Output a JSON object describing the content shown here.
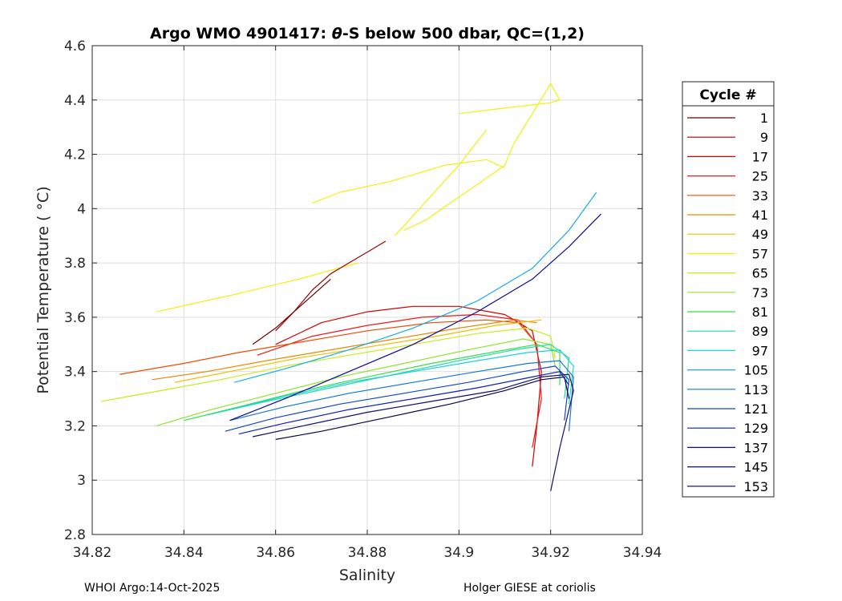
{
  "chart_data": {
    "type": "line",
    "title_parts": [
      "Argo WMO 4901417: ",
      "θ",
      "-S below 500 dbar,  QC=(1,2)"
    ],
    "xlabel": "Salinity",
    "ylabel": "Potential Temperature ( °C)",
    "xlim": [
      34.82,
      34.94
    ],
    "ylim": [
      2.8,
      4.6
    ],
    "xticks": [
      34.82,
      34.84,
      34.86,
      34.88,
      34.9,
      34.92,
      34.94
    ],
    "xtick_labels": [
      "34.82",
      "34.84",
      "34.86",
      "34.88",
      "34.9",
      "34.92",
      "34.94"
    ],
    "yticks": [
      2.8,
      3.0,
      3.2,
      3.4,
      3.6,
      3.8,
      4.0,
      4.2,
      4.4,
      4.6
    ],
    "ytick_labels": [
      "2.8",
      "3",
      "3.2",
      "3.4",
      "3.6",
      "3.8",
      "4",
      "4.2",
      "4.4",
      "4.6"
    ],
    "grid": true,
    "legend": {
      "title": "Cycle #",
      "placement": "outside-right",
      "entries": [
        {
          "label": "1",
          "color": "#6b0000"
        },
        {
          "label": "9",
          "color": "#a00000"
        },
        {
          "label": "17",
          "color": "#d40000"
        },
        {
          "label": "25",
          "color": "#f01818"
        },
        {
          "label": "33",
          "color": "#f24a00"
        },
        {
          "label": "41",
          "color": "#e88a00"
        },
        {
          "label": "49",
          "color": "#f2bb00"
        },
        {
          "label": "57",
          "color": "#f5f00a"
        },
        {
          "label": "65",
          "color": "#c4ee1a"
        },
        {
          "label": "73",
          "color": "#8be62a"
        },
        {
          "label": "81",
          "color": "#35e04a"
        },
        {
          "label": "89",
          "color": "#1ed8a6"
        },
        {
          "label": "97",
          "color": "#1ad2dc"
        },
        {
          "label": "105",
          "color": "#15aee6"
        },
        {
          "label": "113",
          "color": "#1478d8"
        },
        {
          "label": "121",
          "color": "#1046d2"
        },
        {
          "label": "129",
          "color": "#0c1ec0"
        },
        {
          "label": "137",
          "color": "#0a0a9e"
        },
        {
          "label": "145",
          "color": "#10106e"
        },
        {
          "label": "153",
          "color": "#050550"
        }
      ]
    },
    "series": [
      {
        "name": "57",
        "color": "#f5f00a",
        "x": [
          34.868,
          34.874,
          34.885,
          34.897,
          34.906,
          34.91
        ],
        "y": [
          4.02,
          4.06,
          4.1,
          4.16,
          4.18,
          4.15
        ]
      },
      {
        "name": "57",
        "color": "#f5f00a",
        "x": [
          34.9,
          34.91,
          34.92,
          34.922,
          34.92,
          34.916,
          34.912,
          34.91,
          34.905,
          34.898,
          34.893,
          34.888
        ],
        "y": [
          4.35,
          4.37,
          4.39,
          4.4,
          4.46,
          4.35,
          4.24,
          4.16,
          4.1,
          4.02,
          3.96,
          3.92
        ]
      },
      {
        "name": "57",
        "color": "#f5f00a",
        "x": [
          34.886,
          34.893,
          34.9,
          34.906
        ],
        "y": [
          3.9,
          4.03,
          4.16,
          4.29
        ]
      },
      {
        "name": "57",
        "color": "#f5f00a",
        "x": [
          34.834,
          34.85,
          34.865,
          34.878
        ],
        "y": [
          3.62,
          3.68,
          3.74,
          3.8
        ]
      },
      {
        "name": "9",
        "color": "#a00000",
        "x": [
          34.86,
          34.864,
          34.868,
          34.872,
          34.876,
          34.88,
          34.884
        ],
        "y": [
          3.55,
          3.62,
          3.7,
          3.76,
          3.8,
          3.84,
          3.88
        ]
      },
      {
        "name": "1",
        "color": "#6b0000",
        "x": [
          34.855,
          34.86,
          34.864,
          34.868,
          34.872
        ],
        "y": [
          3.5,
          3.56,
          3.62,
          3.68,
          3.74
        ]
      },
      {
        "name": "17",
        "color": "#d40000",
        "x": [
          34.86,
          34.87,
          34.88,
          34.89,
          34.9,
          34.91,
          34.916,
          34.918,
          34.917,
          34.916
        ],
        "y": [
          3.5,
          3.58,
          3.62,
          3.64,
          3.64,
          3.61,
          3.55,
          3.4,
          3.2,
          3.05
        ]
      },
      {
        "name": "25",
        "color": "#f01818",
        "x": [
          34.856,
          34.868,
          34.88,
          34.892,
          34.904,
          34.913,
          34.917,
          34.918,
          34.916
        ],
        "y": [
          3.46,
          3.53,
          3.57,
          3.6,
          3.61,
          3.59,
          3.5,
          3.3,
          3.12
        ]
      },
      {
        "name": "33",
        "color": "#f24a00",
        "x": [
          34.826,
          34.84,
          34.852,
          34.866,
          34.88,
          34.894,
          34.906,
          34.913,
          34.916
        ],
        "y": [
          3.39,
          3.43,
          3.47,
          3.51,
          3.55,
          3.58,
          3.59,
          3.58,
          3.52
        ]
      },
      {
        "name": "41",
        "color": "#e88a00",
        "x": [
          34.833,
          34.845,
          34.858,
          34.872,
          34.886,
          34.9,
          34.912,
          34.917
        ],
        "y": [
          3.37,
          3.4,
          3.44,
          3.48,
          3.52,
          3.56,
          3.59,
          3.58
        ]
      },
      {
        "name": "49",
        "color": "#f2bb00",
        "x": [
          34.838,
          34.85,
          34.865,
          34.88,
          34.895,
          34.908,
          34.918
        ],
        "y": [
          3.36,
          3.4,
          3.45,
          3.49,
          3.53,
          3.57,
          3.59
        ]
      },
      {
        "name": "65",
        "color": "#c4ee1a",
        "x": [
          34.822,
          34.835,
          34.848,
          34.862,
          34.876,
          34.89,
          34.904,
          34.915,
          34.92,
          34.921
        ],
        "y": [
          3.29,
          3.33,
          3.37,
          3.42,
          3.46,
          3.5,
          3.54,
          3.56,
          3.53,
          3.45
        ]
      },
      {
        "name": "73",
        "color": "#8be62a",
        "x": [
          34.834,
          34.846,
          34.86,
          34.874,
          34.888,
          34.902,
          34.914,
          34.92,
          34.921
        ],
        "y": [
          3.2,
          3.26,
          3.32,
          3.38,
          3.43,
          3.48,
          3.52,
          3.5,
          3.42
        ]
      },
      {
        "name": "81",
        "color": "#35e04a",
        "x": [
          34.84,
          34.852,
          34.866,
          34.88,
          34.894,
          34.907,
          34.917,
          34.922,
          34.922
        ],
        "y": [
          3.22,
          3.27,
          3.33,
          3.38,
          3.43,
          3.47,
          3.5,
          3.47,
          3.35
        ]
      },
      {
        "name": "89",
        "color": "#1ed8a6",
        "x": [
          34.845,
          34.858,
          34.872,
          34.886,
          34.9,
          34.912,
          34.92,
          34.924,
          34.923
        ],
        "y": [
          3.24,
          3.29,
          3.34,
          3.39,
          3.44,
          3.48,
          3.5,
          3.45,
          3.3
        ]
      },
      {
        "name": "97",
        "color": "#1ad2dc",
        "x": [
          34.85,
          34.862,
          34.876,
          34.89,
          34.904,
          34.915,
          34.922,
          34.925,
          34.924
        ],
        "y": [
          3.26,
          3.31,
          3.36,
          3.4,
          3.44,
          3.47,
          3.48,
          3.42,
          3.28
        ]
      },
      {
        "name": "105",
        "color": "#15aee6",
        "x": [
          34.851,
          34.862,
          34.876,
          34.89,
          34.904,
          34.916,
          34.924,
          34.93
        ],
        "y": [
          3.36,
          3.41,
          3.48,
          3.56,
          3.66,
          3.78,
          3.92,
          4.06
        ]
      },
      {
        "name": "113",
        "color": "#1478d8",
        "x": [
          34.85,
          34.862,
          34.876,
          34.89,
          34.904,
          34.915,
          34.922,
          34.925,
          34.924
        ],
        "y": [
          3.22,
          3.27,
          3.32,
          3.36,
          3.4,
          3.43,
          3.44,
          3.38,
          3.18
        ]
      },
      {
        "name": "121",
        "color": "#1046d2",
        "x": [
          34.849,
          34.86,
          34.874,
          34.888,
          34.902,
          34.914,
          34.921,
          34.924,
          34.923
        ],
        "y": [
          3.18,
          3.23,
          3.28,
          3.32,
          3.36,
          3.4,
          3.42,
          3.37,
          3.22
        ]
      },
      {
        "name": "129",
        "color": "#0c1ec0",
        "x": [
          34.852,
          34.862,
          34.876,
          34.89,
          34.904,
          34.916,
          34.922,
          34.924
        ],
        "y": [
          3.17,
          3.21,
          3.26,
          3.3,
          3.34,
          3.38,
          3.4,
          3.35
        ]
      },
      {
        "name": "137",
        "color": "#0a0a9e",
        "x": [
          34.85,
          34.862,
          34.876,
          34.89,
          34.904,
          34.916,
          34.924,
          34.931
        ],
        "y": [
          3.22,
          3.3,
          3.4,
          3.5,
          3.62,
          3.74,
          3.86,
          3.98
        ]
      },
      {
        "name": "145",
        "color": "#10106e",
        "x": [
          34.855,
          34.866,
          34.88,
          34.894,
          34.908,
          34.918,
          34.924,
          34.925,
          34.922,
          34.92
        ],
        "y": [
          3.16,
          3.2,
          3.25,
          3.29,
          3.33,
          3.38,
          3.39,
          3.33,
          3.12,
          2.96
        ]
      },
      {
        "name": "153",
        "color": "#050550",
        "x": [
          34.86,
          34.87,
          34.884,
          34.898,
          34.91,
          34.918,
          34.923,
          34.924
        ],
        "y": [
          3.15,
          3.18,
          3.23,
          3.28,
          3.33,
          3.37,
          3.38,
          3.3
        ]
      }
    ]
  },
  "footer": {
    "left": "WHOI Argo:14-Oct-2025",
    "right": "Holger GIESE at coriolis"
  }
}
